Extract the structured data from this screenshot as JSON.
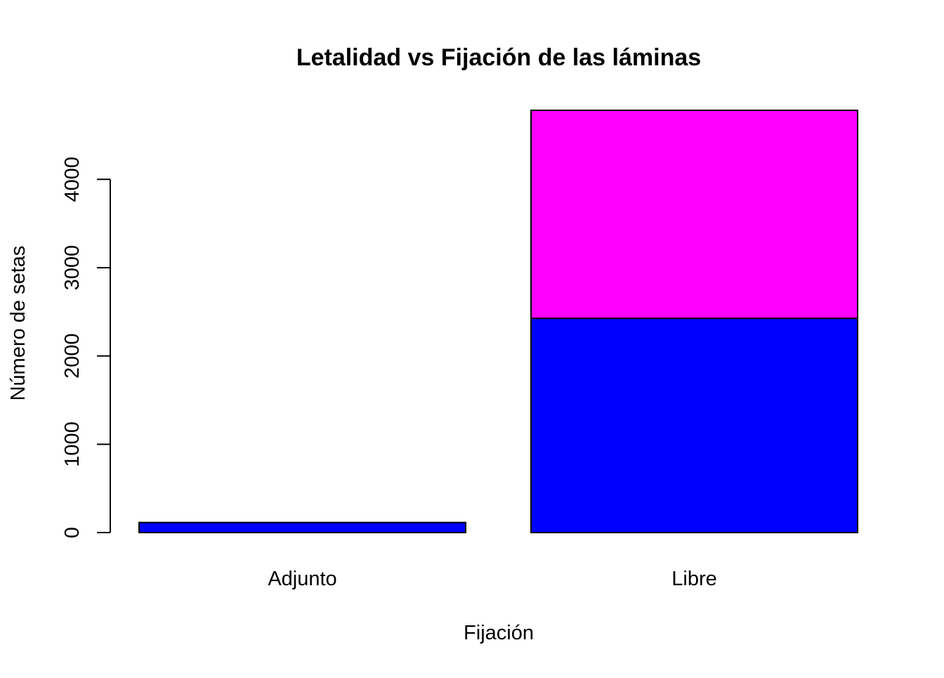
{
  "chart_data": {
    "type": "bar",
    "stacked": true,
    "title": "Letalidad vs Fijación de las láminas",
    "xlabel": "Fijación",
    "ylabel": "Número de setas",
    "categories": [
      "Adjunto",
      "Libre"
    ],
    "series": [
      {
        "color": "#0000FF",
        "values": [
          114,
          2426
        ]
      },
      {
        "color": "#FF00FF",
        "values": [
          0,
          2356
        ]
      }
    ],
    "yticks": [
      0,
      1000,
      2000,
      3000,
      4000
    ],
    "ylim": [
      0,
      4782
    ],
    "grid": false,
    "legend": "none"
  }
}
